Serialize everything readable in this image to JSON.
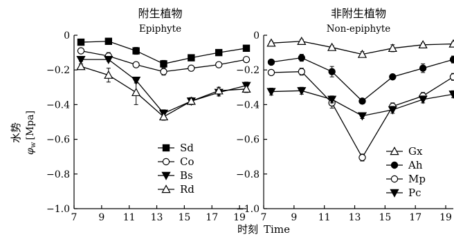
{
  "ylabel_cn": "水势",
  "ylabel_symbol": "φ",
  "ylabel_subscript": "w",
  "ylabel_unit": "[Mpa]",
  "xlabel_cn": "时刻",
  "xlabel_en": "Time",
  "chart_data": [
    {
      "type": "line",
      "title": "附生植物",
      "subtitle": "Epiphyte",
      "xlabel": "时刻 Time",
      "ylabel": "水势 φw [Mpa]",
      "xlim": [
        7,
        19.5
      ],
      "ylim": [
        -1.0,
        0
      ],
      "xticks": [
        7,
        9,
        11,
        13,
        15,
        17,
        19
      ],
      "yticks": [
        0,
        -0.2,
        -0.4,
        -0.6,
        -0.8,
        -1.0
      ],
      "ytick_labels": [
        "0",
        "−0.2",
        "−0.4",
        "−0.6",
        "−0.8",
        "−1.0"
      ],
      "x": [
        7.5,
        9.5,
        11.5,
        13.5,
        15.5,
        17.5,
        19.5
      ],
      "legend_position": "bottom-right",
      "series": [
        {
          "name": "Sd",
          "marker": "square-filled",
          "values": [
            -0.04,
            -0.035,
            -0.09,
            -0.165,
            -0.13,
            -0.1,
            -0.075
          ],
          "errors": [
            0.01,
            0.01,
            0.02,
            0.02,
            0.015,
            0.015,
            0.01
          ]
        },
        {
          "name": "Co",
          "marker": "circle-open",
          "values": [
            -0.09,
            -0.12,
            -0.17,
            -0.21,
            -0.19,
            -0.17,
            -0.14
          ],
          "errors": [
            0.01,
            0.02,
            0.01,
            0.02,
            0.01,
            0.01,
            0.01
          ]
        },
        {
          "name": "Bs",
          "marker": "triangle-down-filled",
          "values": [
            -0.14,
            -0.14,
            -0.26,
            -0.45,
            -0.38,
            -0.33,
            -0.29
          ],
          "errors": [
            0.01,
            0.01,
            0.015,
            0.02,
            0.02,
            0.02,
            0.02
          ]
        },
        {
          "name": "Rd",
          "marker": "triangle-up-open",
          "values": [
            -0.18,
            -0.23,
            -0.33,
            -0.47,
            -0.38,
            -0.32,
            -0.31
          ],
          "errors": [
            0.015,
            0.04,
            0.07,
            0.02,
            0.02,
            0.02,
            0.02
          ]
        }
      ]
    },
    {
      "type": "line",
      "title": "非附生植物",
      "subtitle": "Non-epiphyte",
      "xlabel": "时刻 Time",
      "ylabel": "",
      "xlim": [
        7,
        19.5
      ],
      "ylim": [
        -1.0,
        0
      ],
      "xticks": [
        7,
        9,
        11,
        13,
        15,
        17,
        19
      ],
      "yticks": [
        0,
        -0.2,
        -0.4,
        -0.6,
        -0.8,
        -1.0
      ],
      "ytick_labels": [
        "0",
        "−0.2",
        "−0.4",
        "−0.6",
        "−0.8",
        "−1.0"
      ],
      "x": [
        7.5,
        9.5,
        11.5,
        13.5,
        15.5,
        17.5,
        19.5
      ],
      "legend_position": "bottom-right",
      "series": [
        {
          "name": "Gx",
          "marker": "triangle-up-open",
          "values": [
            -0.045,
            -0.035,
            -0.07,
            -0.11,
            -0.075,
            -0.055,
            -0.05
          ],
          "errors": [
            0.01,
            0.01,
            0.01,
            0.015,
            0.02,
            0.01,
            0.01
          ]
        },
        {
          "name": "Ah",
          "marker": "circle-filled",
          "values": [
            -0.155,
            -0.13,
            -0.21,
            -0.38,
            -0.24,
            -0.19,
            -0.14
          ],
          "errors": [
            0.01,
            0.02,
            0.03,
            0.015,
            0.01,
            0.025,
            0.02
          ]
        },
        {
          "name": "Mp",
          "marker": "circle-open",
          "values": [
            -0.215,
            -0.21,
            -0.39,
            -0.705,
            -0.41,
            -0.35,
            -0.24
          ],
          "errors": [
            0.01,
            0.02,
            0.03,
            0.02,
            0.02,
            0.02,
            0.02
          ]
        },
        {
          "name": "Pc",
          "marker": "triangle-down-filled",
          "values": [
            -0.325,
            -0.32,
            -0.37,
            -0.465,
            -0.43,
            -0.37,
            -0.34
          ],
          "errors": [
            0.02,
            0.02,
            0.02,
            0.015,
            0.02,
            0.02,
            0.02
          ]
        }
      ]
    }
  ]
}
